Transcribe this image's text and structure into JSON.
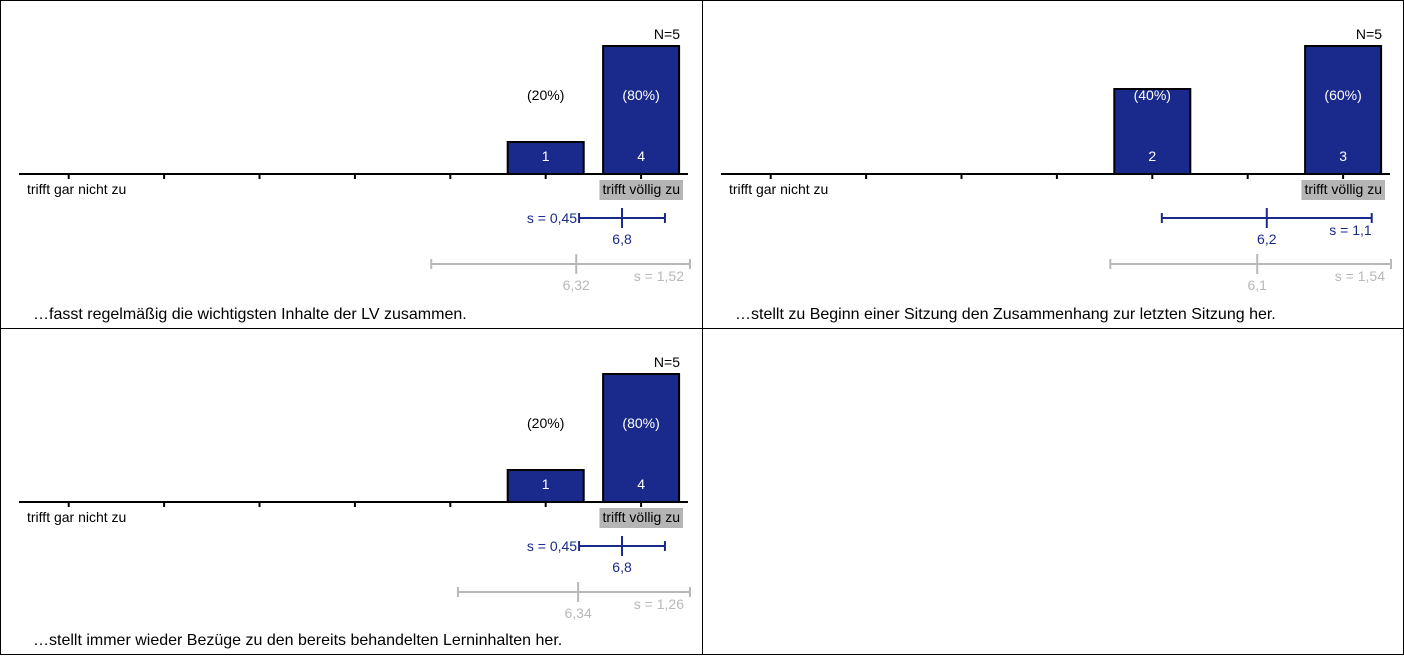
{
  "colors": {
    "bar": "#1a2a8c",
    "bar_border": "#000000",
    "axis": "#000000",
    "own_stat": "#1a2a8c",
    "ref_stat": "#b8b8b8",
    "right_label_bg": "#b5b5b5"
  },
  "scale": {
    "left_label": "trifft gar nicht zu",
    "right_label": "trifft völlig zu",
    "steps": 7
  },
  "chart_data": [
    {
      "type": "bar",
      "title": "…fasst regelmäßig die wichtigsten Inhalte der LV zusammen.",
      "n_label": "N=5",
      "categories": [
        1,
        2,
        3,
        4,
        5,
        6,
        7
      ],
      "counts": [
        0,
        0,
        0,
        0,
        0,
        1,
        4
      ],
      "percent_labels": [
        "",
        "",
        "",
        "",
        "",
        "(20%)",
        "(80%)"
      ],
      "mean": 6.8,
      "mean_label": "6,8",
      "sd": 0.45,
      "sd_label": "s = 0,45",
      "ref_mean": 6.32,
      "ref_mean_label": "6,32",
      "ref_sd": 1.52,
      "ref_sd_label": "s = 1,52"
    },
    {
      "type": "bar",
      "title": "…stellt zu Beginn einer Sitzung den Zusammenhang zur letzten Sitzung her.",
      "n_label": "N=5",
      "categories": [
        1,
        2,
        3,
        4,
        5,
        6,
        7
      ],
      "counts": [
        0,
        0,
        0,
        0,
        2,
        0,
        3
      ],
      "percent_labels": [
        "",
        "",
        "",
        "",
        "(40%)",
        "",
        "(60%)"
      ],
      "mean": 6.2,
      "mean_label": "6,2",
      "sd": 1.1,
      "sd_label": "s = 1,1",
      "ref_mean": 6.1,
      "ref_mean_label": "6,1",
      "ref_sd": 1.54,
      "ref_sd_label": "s = 1,54"
    },
    {
      "type": "bar",
      "title": "…stellt immer wieder Bezüge zu den bereits behandelten Lerninhalten her.",
      "n_label": "N=5",
      "categories": [
        1,
        2,
        3,
        4,
        5,
        6,
        7
      ],
      "counts": [
        0,
        0,
        0,
        0,
        0,
        1,
        4
      ],
      "percent_labels": [
        "",
        "",
        "",
        "",
        "",
        "(20%)",
        "(80%)"
      ],
      "mean": 6.8,
      "mean_label": "6,8",
      "sd": 0.45,
      "sd_label": "s = 0,45",
      "ref_mean": 6.34,
      "ref_mean_label": "6,34",
      "ref_sd": 1.26,
      "ref_sd_label": "s = 1,26"
    }
  ]
}
